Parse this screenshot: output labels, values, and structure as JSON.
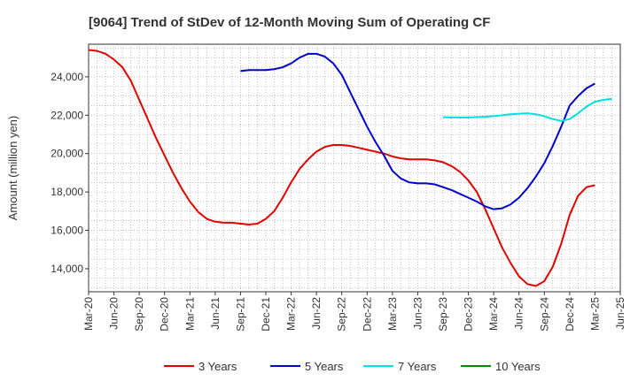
{
  "chart_data": {
    "type": "line",
    "title": "[9064]  Trend of StDev of 12-Month Moving Sum of Operating CF",
    "ylabel": "Amount (million yen)",
    "ylim": [
      12800,
      25700
    ],
    "yticks": [
      14000,
      16000,
      18000,
      20000,
      22000,
      24000
    ],
    "ytick_labels": [
      "14,000",
      "16,000",
      "18,000",
      "20,000",
      "22,000",
      "24,000"
    ],
    "x_tick_labels": [
      "Mar-20",
      "Jun-20",
      "Sep-20",
      "Dec-20",
      "Mar-21",
      "Jun-21",
      "Sep-21",
      "Dec-21",
      "Mar-22",
      "Jun-22",
      "Sep-22",
      "Dec-22",
      "Mar-23",
      "Jun-23",
      "Sep-23",
      "Dec-23",
      "Mar-24",
      "Jun-24",
      "Sep-24",
      "Dec-24",
      "Mar-25",
      "Jun-25"
    ],
    "grid": true,
    "legend_position": "bottom",
    "series": [
      {
        "name": "3 Years",
        "color": "#e00000",
        "start_index": 0,
        "values": [
          25400,
          25350,
          25200,
          24900,
          24500,
          23800,
          22800,
          21800,
          20800,
          19900,
          19000,
          18200,
          17500,
          16950,
          16600,
          16450,
          16400,
          16400,
          16350,
          16300,
          16350,
          16600,
          17000,
          17700,
          18500,
          19200,
          19700,
          20100,
          20350,
          20450,
          20450,
          20400,
          20300,
          20200,
          20100,
          20000,
          19850,
          19750,
          19700,
          19700,
          19700,
          19650,
          19550,
          19350,
          19050,
          18600,
          18000,
          17100,
          16100,
          15100,
          14300,
          13600,
          13200,
          13100,
          13350,
          14100,
          15300,
          16800,
          17800,
          18250,
          18350
        ]
      },
      {
        "name": "5 Years",
        "color": "#0000cc",
        "start_index": 18,
        "values": [
          24300,
          24350,
          24350,
          24350,
          24400,
          24500,
          24700,
          25000,
          25200,
          25200,
          25050,
          24700,
          24100,
          23200,
          22300,
          21400,
          20600,
          19900,
          19100,
          18700,
          18500,
          18450,
          18450,
          18400,
          18250,
          18100,
          17900,
          17700,
          17500,
          17250,
          17100,
          17150,
          17350,
          17700,
          18200,
          18800,
          19500,
          20400,
          21400,
          22500,
          23000,
          23400,
          23650
        ]
      },
      {
        "name": "7 Years",
        "color": "#00e0e0",
        "start_index": 42,
        "values": [
          21900,
          21880,
          21880,
          21880,
          21900,
          21920,
          21950,
          22000,
          22050,
          22080,
          22100,
          22050,
          21950,
          21800,
          21700,
          21800,
          22100,
          22450,
          22700,
          22800,
          22850
        ]
      },
      {
        "name": "10 Years",
        "color": "#008800",
        "start_index": 0,
        "values": []
      }
    ]
  }
}
